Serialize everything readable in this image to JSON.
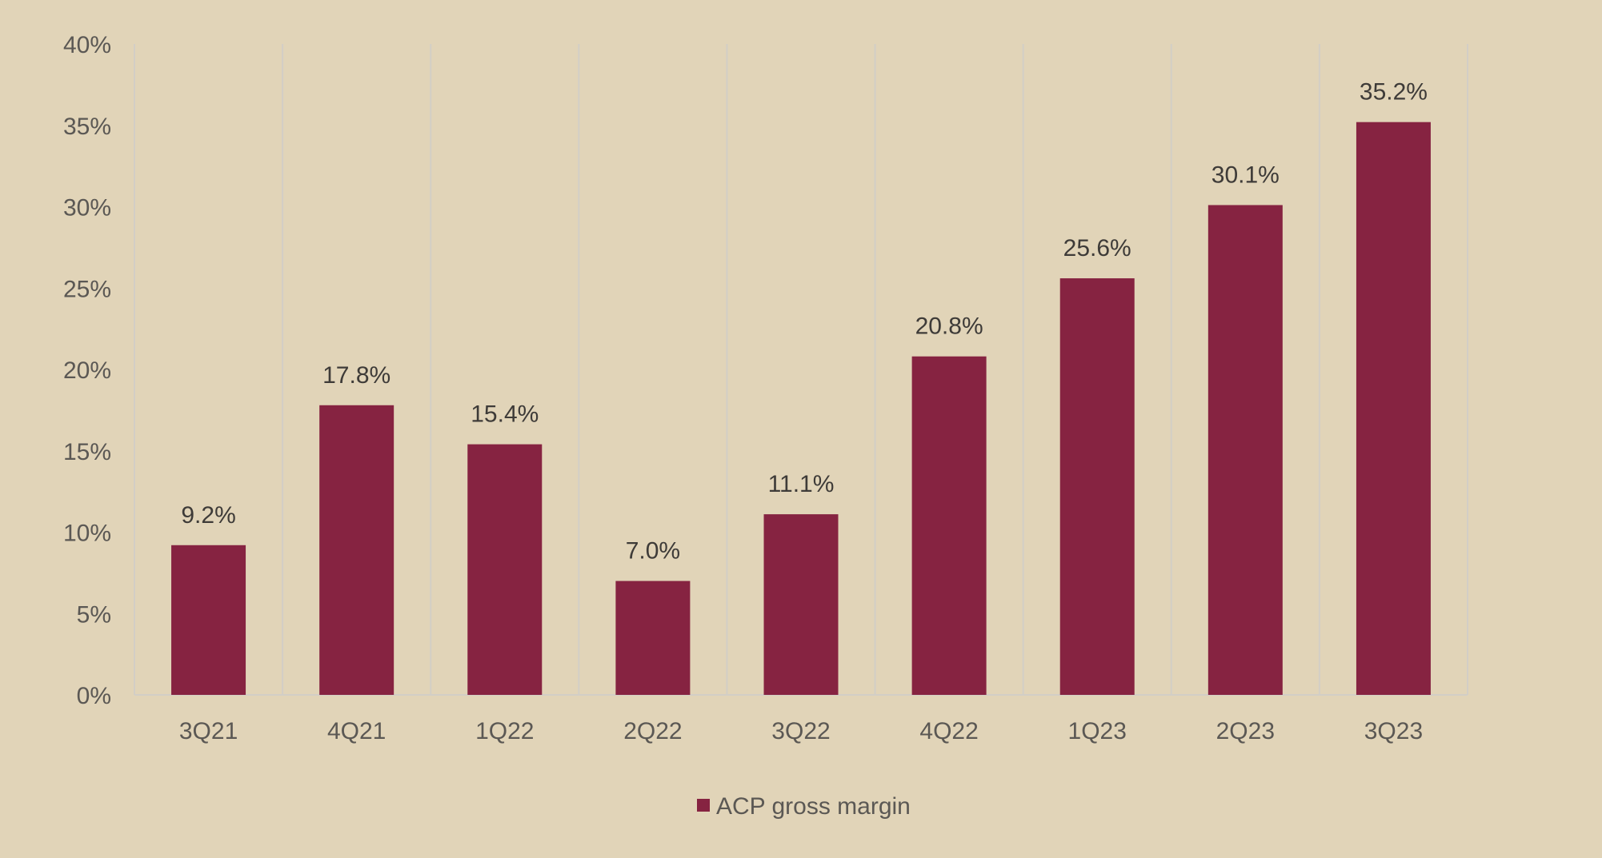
{
  "chart_data": {
    "type": "bar",
    "categories": [
      "3Q21",
      "4Q21",
      "1Q22",
      "2Q22",
      "3Q22",
      "4Q22",
      "1Q23",
      "2Q23",
      "3Q23"
    ],
    "series": [
      {
        "name": "ACP gross margin",
        "values": [
          9.2,
          17.8,
          15.4,
          7.0,
          11.1,
          20.8,
          25.6,
          30.1,
          35.2
        ],
        "labels": [
          "9.2%",
          "17.8%",
          "15.4%",
          "7.0%",
          "11.1%",
          "20.8%",
          "25.6%",
          "30.1%",
          "35.2%"
        ]
      }
    ],
    "y_ticks": [
      "0%",
      "5%",
      "10%",
      "15%",
      "20%",
      "25%",
      "30%",
      "35%",
      "40%"
    ],
    "y_tick_values": [
      0,
      5,
      10,
      15,
      20,
      25,
      30,
      35,
      40
    ],
    "ylim": [
      0,
      40
    ],
    "grid": "vertical category separators",
    "legend_position": "bottom-center",
    "colors": {
      "background": "#e1d4b8",
      "bar": "#862341",
      "grid": "#d2cec6"
    }
  }
}
